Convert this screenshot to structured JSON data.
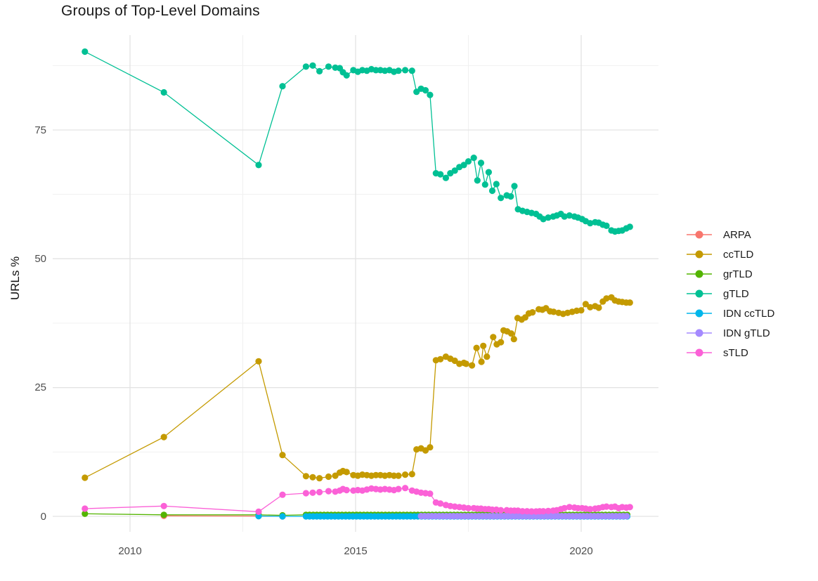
{
  "chart_data": {
    "type": "line",
    "title": "Groups of Top-Level Domains",
    "xlabel": "",
    "ylabel": "URLs %",
    "x_ticks": [
      2010,
      2015,
      2020
    ],
    "x_minor_gridlines": [
      2012.5,
      2017.5
    ],
    "y_ticks": [
      0,
      25,
      50,
      75
    ],
    "y_minor_gridlines": [
      12.5,
      37.5,
      62.5,
      87.5
    ],
    "xlim": [
      2008.3,
      2021.7
    ],
    "ylim": [
      -3,
      93.5
    ],
    "grid": "major+minor, light gray on white, no axis lines or ticks",
    "legend_position": "right",
    "marker": "circle",
    "series": [
      {
        "key": "arpa",
        "name": "ARPA",
        "color": "#F8766D",
        "points": [
          [
            2010.75,
            0.1
          ],
          [
            2012.85,
            0.05
          ],
          [
            2013.38,
            0.0
          ]
        ]
      },
      {
        "key": "cctld",
        "name": "ccTLD",
        "color": "#C49A00",
        "points": [
          [
            2009.0,
            7.5
          ],
          [
            2010.75,
            15.4
          ],
          [
            2012.85,
            30.1
          ],
          [
            2013.38,
            11.9
          ],
          [
            2013.9,
            7.8
          ],
          [
            2014.05,
            7.6
          ],
          [
            2014.2,
            7.4
          ],
          [
            2014.4,
            7.7
          ],
          [
            2014.55,
            7.9
          ],
          [
            2014.65,
            8.5
          ],
          [
            2014.72,
            8.8
          ],
          [
            2014.8,
            8.6
          ],
          [
            2014.95,
            8.0
          ],
          [
            2015.05,
            7.9
          ],
          [
            2015.15,
            8.1
          ],
          [
            2015.25,
            8.0
          ],
          [
            2015.35,
            7.9
          ],
          [
            2015.45,
            8.0
          ],
          [
            2015.55,
            8.0
          ],
          [
            2015.65,
            7.9
          ],
          [
            2015.75,
            8.0
          ],
          [
            2015.85,
            7.9
          ],
          [
            2015.95,
            7.9
          ],
          [
            2016.1,
            8.1
          ],
          [
            2016.25,
            8.2
          ],
          [
            2016.35,
            13.0
          ],
          [
            2016.45,
            13.2
          ],
          [
            2016.55,
            12.8
          ],
          [
            2016.65,
            13.4
          ],
          [
            2016.78,
            30.3
          ],
          [
            2016.88,
            30.5
          ],
          [
            2017.0,
            31.0
          ],
          [
            2017.1,
            30.6
          ],
          [
            2017.2,
            30.2
          ],
          [
            2017.3,
            29.6
          ],
          [
            2017.4,
            29.8
          ],
          [
            2017.45,
            29.6
          ],
          [
            2017.58,
            29.3
          ],
          [
            2017.68,
            32.7
          ],
          [
            2017.79,
            30.0
          ],
          [
            2017.83,
            33.1
          ],
          [
            2017.91,
            31.0
          ],
          [
            2018.05,
            34.8
          ],
          [
            2018.13,
            33.4
          ],
          [
            2018.22,
            33.8
          ],
          [
            2018.28,
            36.1
          ],
          [
            2018.36,
            35.9
          ],
          [
            2018.45,
            35.5
          ],
          [
            2018.51,
            34.4
          ],
          [
            2018.59,
            38.5
          ],
          [
            2018.68,
            38.2
          ],
          [
            2018.76,
            38.6
          ],
          [
            2018.84,
            39.4
          ],
          [
            2018.92,
            39.6
          ],
          [
            2019.06,
            40.2
          ],
          [
            2019.14,
            40.1
          ],
          [
            2019.22,
            40.4
          ],
          [
            2019.31,
            39.8
          ],
          [
            2019.39,
            39.7
          ],
          [
            2019.5,
            39.5
          ],
          [
            2019.6,
            39.3
          ],
          [
            2019.7,
            39.5
          ],
          [
            2019.8,
            39.7
          ],
          [
            2019.9,
            39.9
          ],
          [
            2020.0,
            40.0
          ],
          [
            2020.1,
            41.2
          ],
          [
            2020.2,
            40.6
          ],
          [
            2020.31,
            40.8
          ],
          [
            2020.39,
            40.5
          ],
          [
            2020.48,
            41.7
          ],
          [
            2020.56,
            42.3
          ],
          [
            2020.67,
            42.5
          ],
          [
            2020.75,
            41.9
          ],
          [
            2020.83,
            41.7
          ],
          [
            2020.91,
            41.6
          ],
          [
            2021.0,
            41.5
          ],
          [
            2021.08,
            41.5
          ]
        ]
      },
      {
        "key": "grtld",
        "name": "grTLD",
        "color": "#53B400",
        "points": [
          [
            2009.0,
            0.5
          ],
          [
            2010.75,
            0.3
          ],
          [
            2012.85,
            0.3
          ],
          [
            2013.38,
            0.2
          ]
        ],
        "flat": {
          "from": 2013.9,
          "to": 2021.08,
          "step": 0.08,
          "value": 0.3
        }
      },
      {
        "key": "gtld",
        "name": "gTLD",
        "color": "#00C094",
        "points": [
          [
            2009.0,
            90.2
          ],
          [
            2010.75,
            82.3
          ],
          [
            2012.85,
            68.2
          ],
          [
            2013.38,
            83.5
          ],
          [
            2013.9,
            87.3
          ],
          [
            2014.05,
            87.5
          ],
          [
            2014.2,
            86.4
          ],
          [
            2014.4,
            87.3
          ],
          [
            2014.55,
            87.1
          ],
          [
            2014.65,
            87.0
          ],
          [
            2014.72,
            86.2
          ],
          [
            2014.8,
            85.6
          ],
          [
            2014.95,
            86.6
          ],
          [
            2015.05,
            86.3
          ],
          [
            2015.15,
            86.6
          ],
          [
            2015.25,
            86.5
          ],
          [
            2015.35,
            86.8
          ],
          [
            2015.45,
            86.6
          ],
          [
            2015.55,
            86.6
          ],
          [
            2015.65,
            86.5
          ],
          [
            2015.75,
            86.6
          ],
          [
            2015.85,
            86.3
          ],
          [
            2015.95,
            86.5
          ],
          [
            2016.1,
            86.6
          ],
          [
            2016.25,
            86.5
          ],
          [
            2016.35,
            82.4
          ],
          [
            2016.45,
            83.0
          ],
          [
            2016.55,
            82.7
          ],
          [
            2016.65,
            81.8
          ],
          [
            2016.78,
            66.6
          ],
          [
            2016.88,
            66.4
          ],
          [
            2017.0,
            65.7
          ],
          [
            2017.1,
            66.6
          ],
          [
            2017.2,
            67.1
          ],
          [
            2017.3,
            67.8
          ],
          [
            2017.4,
            68.2
          ],
          [
            2017.5,
            68.9
          ],
          [
            2017.62,
            69.6
          ],
          [
            2017.7,
            65.2
          ],
          [
            2017.78,
            68.6
          ],
          [
            2017.87,
            64.4
          ],
          [
            2017.95,
            66.8
          ],
          [
            2018.03,
            63.2
          ],
          [
            2018.12,
            64.5
          ],
          [
            2018.22,
            61.8
          ],
          [
            2018.35,
            62.3
          ],
          [
            2018.44,
            62.1
          ],
          [
            2018.52,
            64.1
          ],
          [
            2018.6,
            59.6
          ],
          [
            2018.7,
            59.3
          ],
          [
            2018.8,
            59.1
          ],
          [
            2018.9,
            58.9
          ],
          [
            2019.0,
            58.7
          ],
          [
            2019.08,
            58.2
          ],
          [
            2019.16,
            57.7
          ],
          [
            2019.27,
            58.0
          ],
          [
            2019.38,
            58.2
          ],
          [
            2019.46,
            58.4
          ],
          [
            2019.55,
            58.7
          ],
          [
            2019.63,
            58.2
          ],
          [
            2019.74,
            58.4
          ],
          [
            2019.85,
            58.2
          ],
          [
            2019.93,
            58.0
          ],
          [
            2020.02,
            57.7
          ],
          [
            2020.1,
            57.3
          ],
          [
            2020.2,
            56.9
          ],
          [
            2020.31,
            57.1
          ],
          [
            2020.39,
            57.0
          ],
          [
            2020.48,
            56.6
          ],
          [
            2020.56,
            56.4
          ],
          [
            2020.67,
            55.5
          ],
          [
            2020.75,
            55.3
          ],
          [
            2020.83,
            55.4
          ],
          [
            2020.91,
            55.5
          ],
          [
            2021.0,
            55.9
          ],
          [
            2021.08,
            56.2
          ]
        ]
      },
      {
        "key": "idn-cctld",
        "name": "IDN ccTLD",
        "color": "#00B6EB",
        "points": [
          [
            2012.85,
            0.05
          ],
          [
            2013.38,
            0.0
          ]
        ],
        "flat": {
          "from": 2013.9,
          "to": 2021.08,
          "step": 0.08,
          "value": 0.0
        }
      },
      {
        "key": "idn-gtld",
        "name": "IDN gTLD",
        "color": "#A58AFF",
        "points": [],
        "flat": {
          "from": 2016.45,
          "to": 2021.08,
          "step": 0.08,
          "value": 0.05
        }
      },
      {
        "key": "stld",
        "name": "sTLD",
        "color": "#FB61D7",
        "points": [
          [
            2009.0,
            1.5
          ],
          [
            2010.75,
            2.0
          ],
          [
            2012.85,
            0.9
          ],
          [
            2013.38,
            4.2
          ],
          [
            2013.9,
            4.5
          ],
          [
            2014.05,
            4.6
          ],
          [
            2014.2,
            4.7
          ],
          [
            2014.4,
            4.9
          ],
          [
            2014.55,
            4.8
          ],
          [
            2014.65,
            5.0
          ],
          [
            2014.72,
            5.3
          ],
          [
            2014.8,
            5.1
          ],
          [
            2014.95,
            5.0
          ],
          [
            2015.05,
            5.1
          ],
          [
            2015.15,
            5.0
          ],
          [
            2015.25,
            5.2
          ],
          [
            2015.35,
            5.4
          ],
          [
            2015.45,
            5.3
          ],
          [
            2015.55,
            5.2
          ],
          [
            2015.65,
            5.3
          ],
          [
            2015.75,
            5.2
          ],
          [
            2015.85,
            5.1
          ],
          [
            2015.95,
            5.3
          ],
          [
            2016.1,
            5.5
          ],
          [
            2016.25,
            5.0
          ],
          [
            2016.35,
            4.8
          ],
          [
            2016.45,
            4.6
          ],
          [
            2016.55,
            4.5
          ],
          [
            2016.65,
            4.4
          ],
          [
            2016.78,
            2.7
          ],
          [
            2016.88,
            2.5
          ],
          [
            2017.0,
            2.2
          ],
          [
            2017.1,
            2.0
          ],
          [
            2017.2,
            1.9
          ],
          [
            2017.3,
            1.8
          ],
          [
            2017.4,
            1.7
          ],
          [
            2017.5,
            1.6
          ],
          [
            2017.62,
            1.6
          ],
          [
            2017.7,
            1.5
          ],
          [
            2017.78,
            1.5
          ],
          [
            2017.87,
            1.4
          ],
          [
            2017.95,
            1.4
          ],
          [
            2018.03,
            1.3
          ],
          [
            2018.12,
            1.3
          ],
          [
            2018.22,
            1.2
          ],
          [
            2018.35,
            1.2
          ],
          [
            2018.44,
            1.1
          ],
          [
            2018.52,
            1.1
          ],
          [
            2018.6,
            1.1
          ],
          [
            2018.7,
            1.0
          ],
          [
            2018.8,
            1.0
          ],
          [
            2018.9,
            0.95
          ],
          [
            2019.0,
            0.95
          ],
          [
            2019.08,
            1.0
          ],
          [
            2019.16,
            1.0
          ],
          [
            2019.27,
            1.05
          ],
          [
            2019.38,
            1.1
          ],
          [
            2019.46,
            1.2
          ],
          [
            2019.55,
            1.4
          ],
          [
            2019.63,
            1.6
          ],
          [
            2019.74,
            1.8
          ],
          [
            2019.85,
            1.7
          ],
          [
            2019.93,
            1.6
          ],
          [
            2020.02,
            1.6
          ],
          [
            2020.1,
            1.5
          ],
          [
            2020.2,
            1.4
          ],
          [
            2020.31,
            1.5
          ],
          [
            2020.39,
            1.6
          ],
          [
            2020.48,
            1.8
          ],
          [
            2020.56,
            1.9
          ],
          [
            2020.67,
            1.8
          ],
          [
            2020.75,
            1.9
          ],
          [
            2020.83,
            1.6
          ],
          [
            2020.91,
            1.8
          ],
          [
            2021.0,
            1.7
          ],
          [
            2021.08,
            1.8
          ]
        ]
      }
    ],
    "colors": {
      "background": "#ffffff",
      "grid_major": "#e3e3e3",
      "grid_minor": "#f0f0f0",
      "title_text": "#1a1a1a",
      "tick_text": "#4d4d4d"
    }
  }
}
